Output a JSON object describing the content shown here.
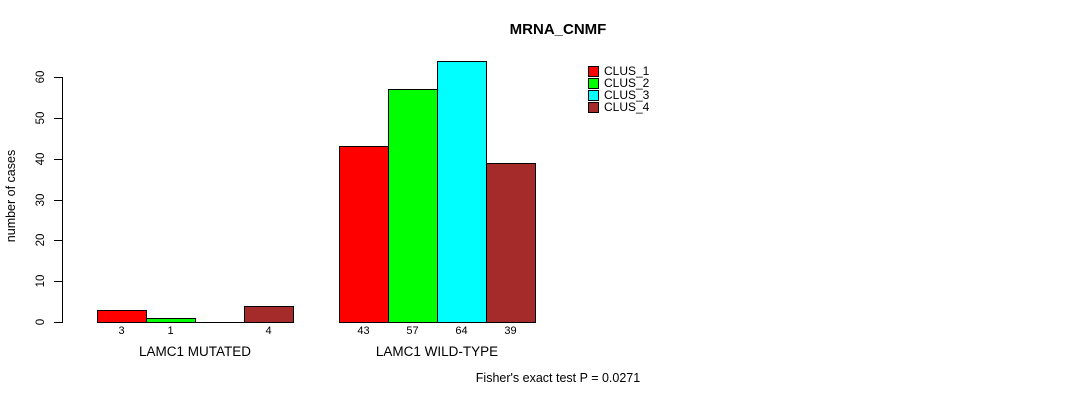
{
  "title": "MRNA_CNMF",
  "footer_note": "Fisher's exact test P = 0.0271",
  "y_axis_title": "number of cases",
  "colors": {
    "background": "#ffffff",
    "axis": "#000000",
    "text": "#000000",
    "clus_1": "#ff0000",
    "clus_2": "#00ff00",
    "clus_3": "#00ffff",
    "clus_4": "#a52a2a"
  },
  "legend": {
    "entries": [
      {
        "label": "CLUS_1",
        "color": "#ff0000"
      },
      {
        "label": "CLUS_2",
        "color": "#00ff00"
      },
      {
        "label": "CLUS_3",
        "color": "#00ffff"
      },
      {
        "label": "CLUS_4",
        "color": "#a52a2a"
      }
    ]
  },
  "chart_data": {
    "type": "bar",
    "title": "MRNA_CNMF",
    "ylabel": "number of cases",
    "xlabel": "",
    "ylim": [
      0,
      60
    ],
    "yticks": [
      0,
      10,
      20,
      30,
      40,
      50,
      60
    ],
    "grid": false,
    "legend_position": "top-right",
    "series_labels": [
      "CLUS_1",
      "CLUS_2",
      "CLUS_3",
      "CLUS_4"
    ],
    "series_colors": [
      "#ff0000",
      "#00ff00",
      "#00ffff",
      "#a52a2a"
    ],
    "groups": [
      {
        "label": "LAMC1 MUTATED",
        "values": [
          3,
          1,
          0,
          4
        ],
        "bar_labels": [
          "3",
          "1",
          null,
          "4"
        ]
      },
      {
        "label": "LAMC1 WILD-TYPE",
        "values": [
          43,
          57,
          64,
          39
        ],
        "bar_labels": [
          "43",
          "57",
          "64",
          "39"
        ]
      }
    ],
    "annotation": "Fisher's exact test P = 0.0271"
  }
}
